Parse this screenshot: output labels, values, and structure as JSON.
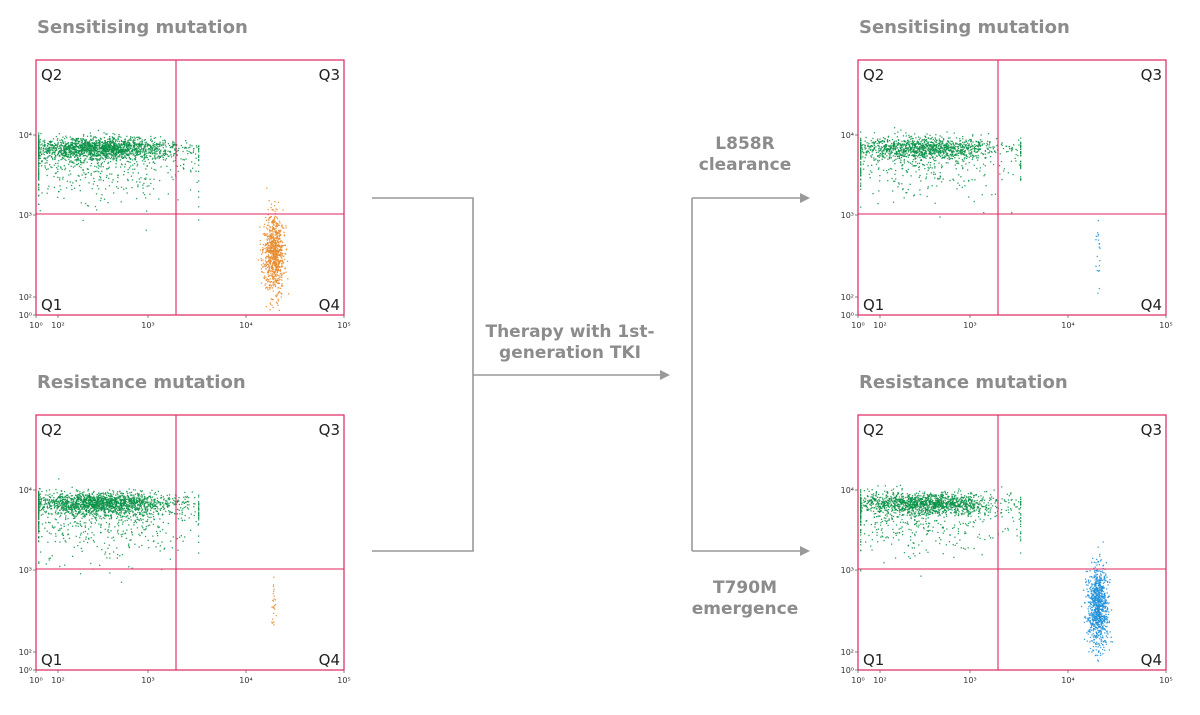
{
  "plots": [
    {
      "title": "Sensitising mutation",
      "quadrants": {
        "q1": "Q1",
        "q2": "Q2",
        "q3": "Q3",
        "q4": "Q4"
      },
      "y_ticks": [
        "10⁴",
        "10³",
        "10²",
        "10⁰"
      ],
      "x_ticks": [
        "10⁰",
        "10²",
        "10³",
        "10⁴",
        "10⁵"
      ],
      "clusters": [
        {
          "color": "#0a9246",
          "center": [
            300,
            7000
          ],
          "n": 2200
        },
        {
          "color": "#e8892a",
          "center": [
            19000,
            350
          ],
          "n": 800
        }
      ]
    },
    {
      "title": "Resistance mutation",
      "quadrants": {
        "q1": "Q1",
        "q2": "Q2",
        "q3": "Q3",
        "q4": "Q4"
      },
      "y_ticks": [
        "10⁴",
        "10³",
        "10²",
        "10⁰"
      ],
      "x_ticks": [
        "10⁰",
        "10²",
        "10³",
        "10⁴",
        "10⁵"
      ],
      "clusters": [
        {
          "color": "#0a9246",
          "center": [
            300,
            7000
          ],
          "n": 2200
        },
        {
          "color": "#e8892a",
          "center": [
            19000,
            400
          ],
          "n": 25
        }
      ]
    },
    {
      "title": "Sensitising mutation",
      "quadrants": {
        "q1": "Q1",
        "q2": "Q2",
        "q3": "Q3",
        "q4": "Q4"
      },
      "y_ticks": [
        "10⁴",
        "10³",
        "10²",
        "10⁰"
      ],
      "x_ticks": [
        "10⁰",
        "10²",
        "10³",
        "10⁴",
        "10⁵"
      ],
      "clusters": [
        {
          "color": "#0a9246",
          "center": [
            300,
            7000
          ],
          "n": 1500
        },
        {
          "color": "#1e90d8",
          "center": [
            20000,
            350
          ],
          "n": 20
        }
      ]
    },
    {
      "title": "Resistance mutation",
      "quadrants": {
        "q1": "Q1",
        "q2": "Q2",
        "q3": "Q3",
        "q4": "Q4"
      },
      "y_ticks": [
        "10⁴",
        "10³",
        "10²",
        "10⁰"
      ],
      "x_ticks": [
        "10⁰",
        "10²",
        "10³",
        "10⁴",
        "10⁵"
      ],
      "clusters": [
        {
          "color": "#0a9246",
          "center": [
            300,
            7000
          ],
          "n": 1800
        },
        {
          "color": "#1e90d8",
          "center": [
            20000,
            350
          ],
          "n": 900
        }
      ]
    }
  ],
  "flow": {
    "therapy_label": "Therapy with 1st-generation TKI",
    "top_label": "L858R clearance",
    "bottom_label": "T790M emergence",
    "arrow_color": "#999999"
  },
  "colors": {
    "frame": "#e0245e",
    "green": "#0a9246",
    "orange": "#e8892a",
    "blue": "#1e90d8",
    "title_text": "#8c8c8c"
  }
}
